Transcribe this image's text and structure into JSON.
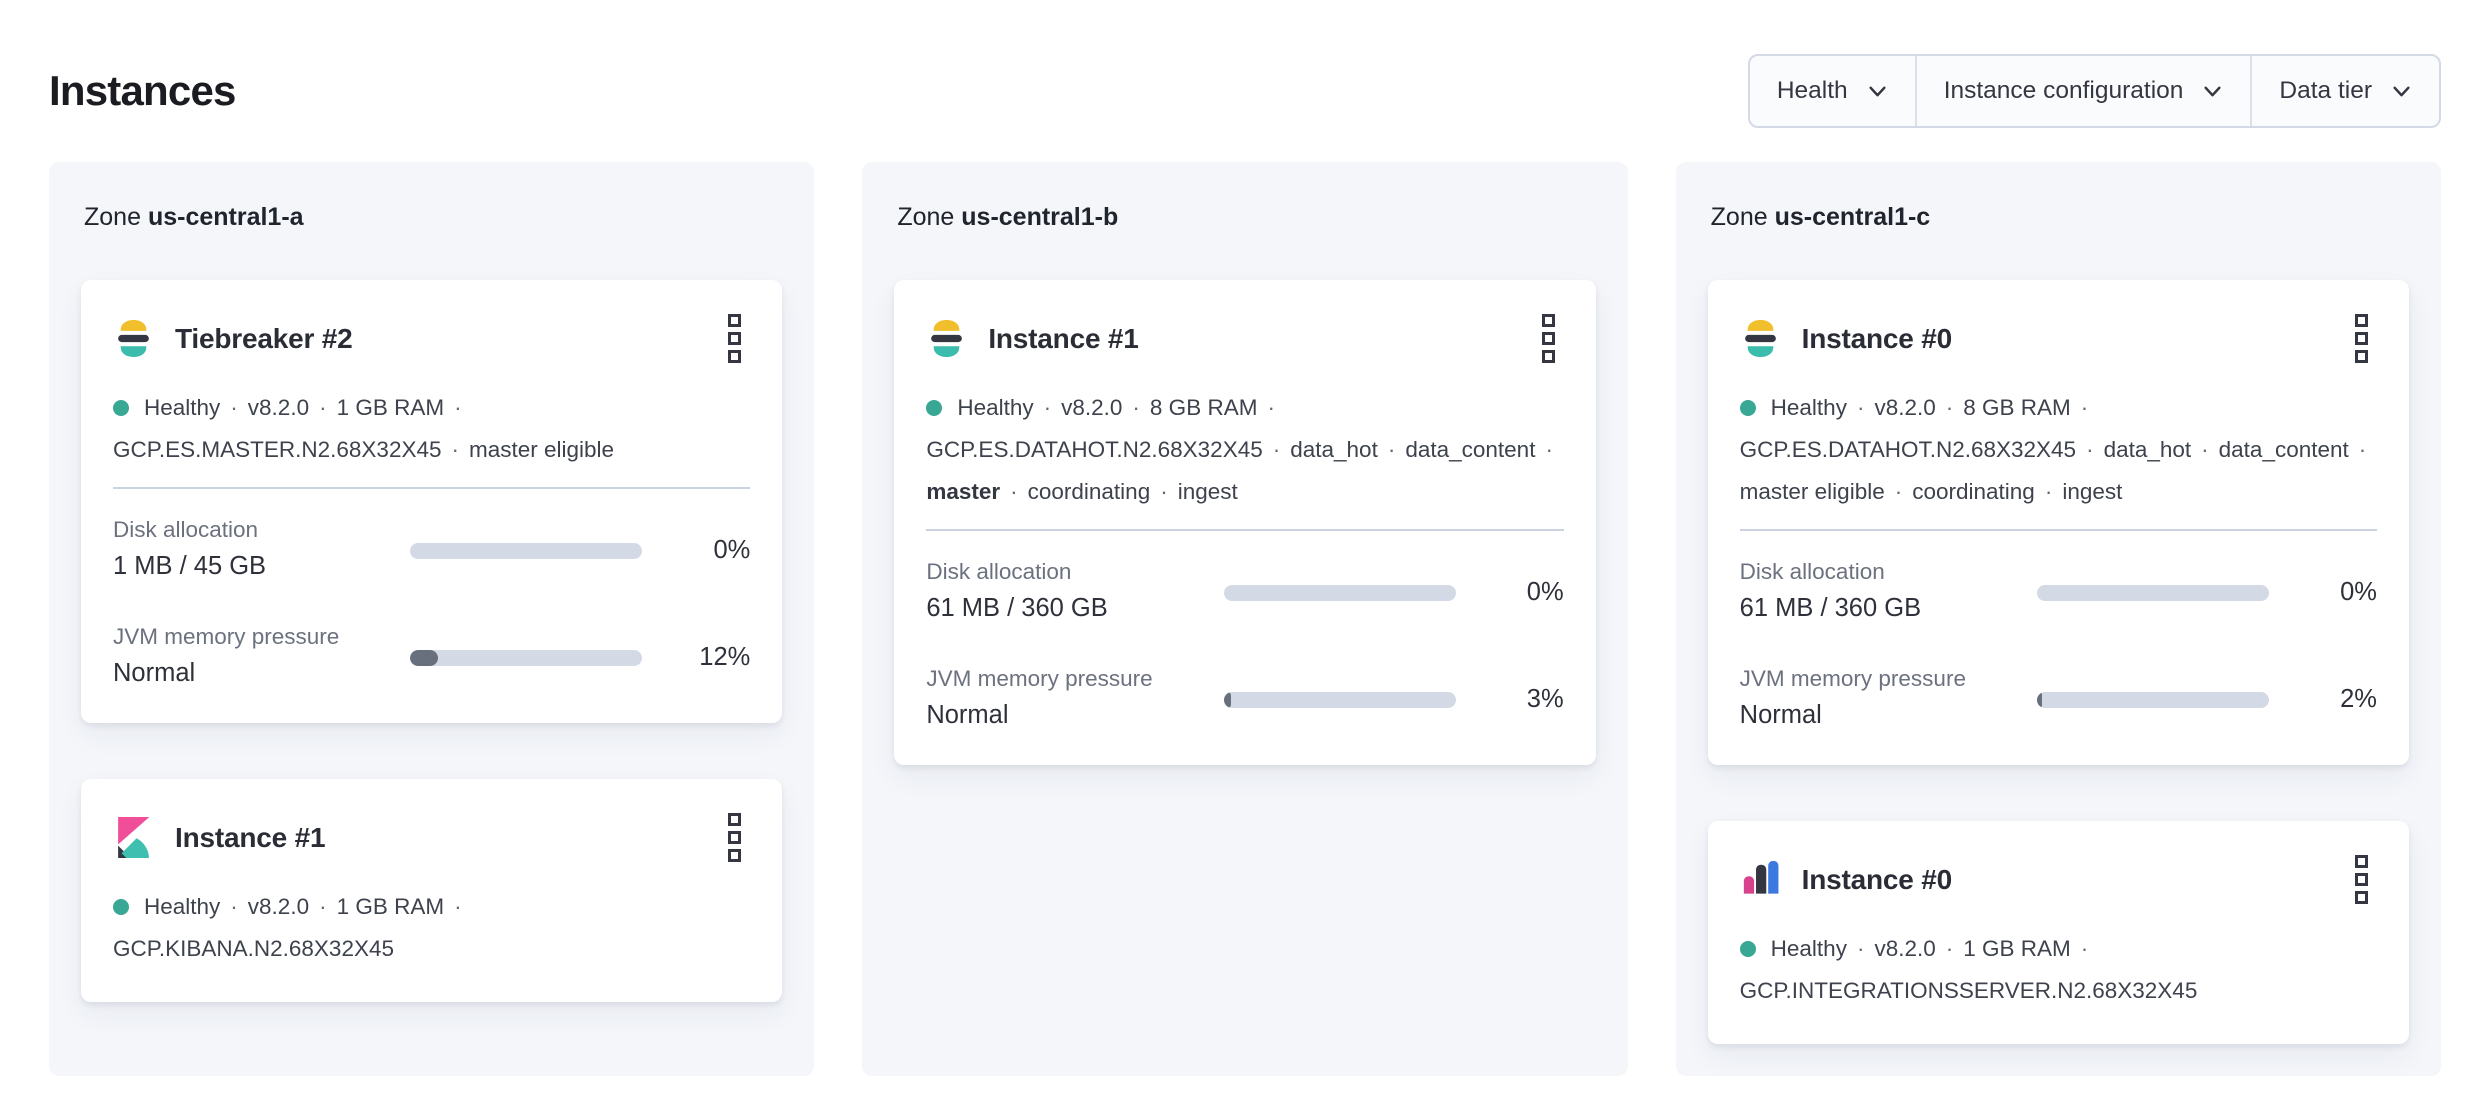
{
  "page": {
    "title": "Instances"
  },
  "filters": [
    {
      "id": "health",
      "label": "Health"
    },
    {
      "id": "instance-configuration",
      "label": "Instance configuration"
    },
    {
      "id": "data-tier",
      "label": "Data tier"
    }
  ],
  "colors": {
    "health_dot": "#38a794",
    "bar_track": "#d3dae5",
    "bar_fill": "#69707d",
    "zone_panel_bg": "#f4f6fa",
    "es_yellow": "#f1bf2b",
    "es_dark": "#343741",
    "es_teal": "#3cbcac",
    "kibana_pink": "#f04e98",
    "kibana_dark": "#343741",
    "kibana_teal": "#3ebfb0",
    "integrations_pink": "#d8428c",
    "integrations_dark": "#343741",
    "integrations_blue": "#3b78e0"
  },
  "zones": [
    {
      "label": "Zone",
      "name": "us-central1-a",
      "cards": [
        {
          "logo": "elasticsearch",
          "title": "Tiebreaker #2",
          "status": "Healthy",
          "meta": [
            {
              "text": "v8.2.0"
            },
            {
              "text": "1 GB RAM"
            },
            {
              "text": "GCP.ES.MASTER.N2.68X32X45"
            },
            {
              "text": "master eligible"
            }
          ],
          "metrics": [
            {
              "label": "Disk allocation",
              "value": "1 MB / 45 GB",
              "percent": "0%",
              "fill_pct": 0
            },
            {
              "label": "JVM memory pressure",
              "value": "Normal",
              "percent": "12%",
              "fill_pct": 12
            }
          ]
        },
        {
          "logo": "kibana",
          "title": "Instance #1",
          "status": "Healthy",
          "meta": [
            {
              "text": "v8.2.0"
            },
            {
              "text": "1 GB RAM"
            },
            {
              "text": "GCP.KIBANA.N2.68X32X45"
            }
          ],
          "metrics": []
        }
      ]
    },
    {
      "label": "Zone",
      "name": "us-central1-b",
      "cards": [
        {
          "logo": "elasticsearch",
          "title": "Instance #1",
          "status": "Healthy",
          "meta": [
            {
              "text": "v8.2.0"
            },
            {
              "text": "8 GB RAM"
            },
            {
              "text": "GCP.ES.DATAHOT.N2.68X32X45"
            },
            {
              "text": "data_hot"
            },
            {
              "text": "data_content"
            },
            {
              "text": "master",
              "bold": true
            },
            {
              "text": "coordinating"
            },
            {
              "text": "ingest"
            }
          ],
          "metrics": [
            {
              "label": "Disk allocation",
              "value": "61 MB / 360 GB",
              "percent": "0%",
              "fill_pct": 0
            },
            {
              "label": "JVM memory pressure",
              "value": "Normal",
              "percent": "3%",
              "fill_pct": 3
            }
          ]
        }
      ]
    },
    {
      "label": "Zone",
      "name": "us-central1-c",
      "cards": [
        {
          "logo": "elasticsearch",
          "title": "Instance #0",
          "status": "Healthy",
          "meta": [
            {
              "text": "v8.2.0"
            },
            {
              "text": "8 GB RAM"
            },
            {
              "text": "GCP.ES.DATAHOT.N2.68X32X45"
            },
            {
              "text": "data_hot"
            },
            {
              "text": "data_content"
            },
            {
              "text": "master eligible"
            },
            {
              "text": "coordinating"
            },
            {
              "text": "ingest"
            }
          ],
          "metrics": [
            {
              "label": "Disk allocation",
              "value": "61 MB / 360 GB",
              "percent": "0%",
              "fill_pct": 0
            },
            {
              "label": "JVM memory pressure",
              "value": "Normal",
              "percent": "2%",
              "fill_pct": 2
            }
          ]
        },
        {
          "logo": "integrations-server",
          "title": "Instance #0",
          "status": "Healthy",
          "meta": [
            {
              "text": "v8.2.0"
            },
            {
              "text": "1 GB RAM"
            },
            {
              "text": "GCP.INTEGRATIONSSERVER.N2.68X32X45"
            }
          ],
          "metrics": []
        }
      ]
    }
  ]
}
